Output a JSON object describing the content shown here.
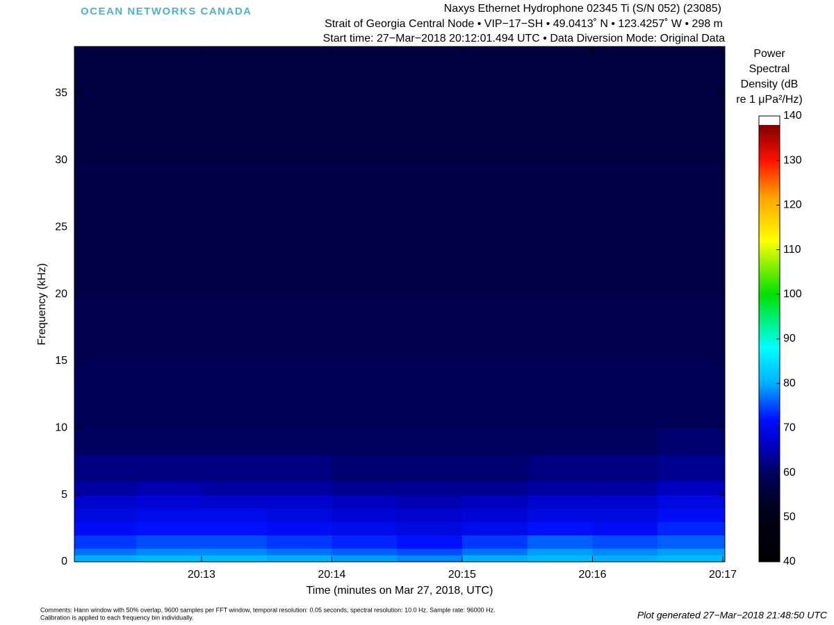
{
  "chart_data": {
    "type": "heatmap",
    "logo": "OCEAN NETWORKS CANADA",
    "title_lines": [
      "Naxys Ethernet Hydrophone 02345 Ti (S/N 052) (23085)",
      "Strait of Georgia Central Node  •  VIP−17−SH  •  49.0413˚ N  •  123.4257˚ W  •  298 m",
      "Start time: 27−Mar−2018 20:12:01.494 UTC  •  Data Diversion Mode: Original Data"
    ],
    "x_label": "Time (minutes on Mar 27, 2018, UTC)",
    "y_label": "Frequency (kHz)",
    "colorbar_title": [
      "Power",
      "Spectral",
      "Density (dB",
      "re 1 μPa²/Hz)"
    ],
    "comments": [
      "Comments: Hann window with 50% overlap, 9600 samples per FFT window, temporal resolution: 0.05 seconds, spectral resolution: 10.0 Hz. Sample rate: 96000 Hz.",
      "Calibration is applied to each frequency bin individually."
    ],
    "generated": "Plot generated 27−Mar−2018 21:48:50 UTC",
    "xlim": [
      12.025,
      17.016
    ],
    "xticks": [
      {
        "value": 13,
        "label": "20:13"
      },
      {
        "value": 14,
        "label": "20:14"
      },
      {
        "value": 15,
        "label": "20:15"
      },
      {
        "value": 16,
        "label": "20:16"
      },
      {
        "value": 17,
        "label": "20:17"
      }
    ],
    "ylim": [
      0,
      38.5
    ],
    "yticks": [
      0,
      5,
      10,
      15,
      20,
      25,
      30,
      35
    ],
    "x_edges": [
      12.025,
      12.5,
      13,
      13.5,
      14,
      14.5,
      15,
      15.5,
      16,
      16.5,
      17.016
    ],
    "y_edges": [
      0,
      0.5,
      1,
      2,
      3,
      4,
      5,
      6,
      8,
      10,
      15,
      20,
      25,
      30,
      38.5
    ],
    "z": [
      [
        80,
        81,
        81,
        80,
        79,
        78,
        80,
        81,
        80,
        81
      ],
      [
        77,
        78,
        78,
        77,
        76,
        75,
        77,
        79,
        78,
        79
      ],
      [
        74,
        75,
        75,
        74,
        73,
        72,
        74,
        76,
        75,
        76
      ],
      [
        71,
        72,
        72,
        71,
        70,
        69,
        70,
        72,
        71,
        73
      ],
      [
        69,
        70,
        70,
        69,
        68,
        67,
        68,
        69,
        69,
        71
      ],
      [
        67,
        68,
        67,
        67,
        66,
        65,
        66,
        67,
        67,
        69
      ],
      [
        64,
        65,
        64,
        64,
        63,
        63,
        63,
        64,
        64,
        66
      ],
      [
        62,
        62,
        62,
        62,
        61,
        61,
        61,
        62,
        62,
        63
      ],
      [
        60,
        60,
        60,
        60,
        60,
        60,
        60,
        60,
        60,
        61
      ],
      [
        59,
        59,
        59,
        59,
        59,
        59,
        59,
        59,
        59,
        59
      ],
      [
        58,
        58,
        58,
        58,
        58,
        58,
        58,
        58,
        58,
        58
      ],
      [
        57,
        57,
        57,
        57,
        57,
        57,
        57,
        57,
        57,
        57
      ],
      [
        57,
        57,
        57,
        57,
        57,
        57,
        57,
        57,
        57,
        57
      ],
      [
        56,
        56,
        56,
        56,
        56,
        56,
        56,
        56,
        56,
        56
      ]
    ],
    "clim": [
      40,
      140
    ],
    "cticks": [
      40,
      50,
      60,
      70,
      80,
      90,
      100,
      110,
      120,
      130,
      140
    ],
    "colorscale": [
      [
        40,
        "#000000"
      ],
      [
        52,
        "#00001c"
      ],
      [
        60,
        "#000060"
      ],
      [
        66,
        "#0000c0"
      ],
      [
        72,
        "#0010ff"
      ],
      [
        80,
        "#00b0ff"
      ],
      [
        88,
        "#00ffff"
      ],
      [
        100,
        "#00e000"
      ],
      [
        112,
        "#ffff00"
      ],
      [
        122,
        "#ffa000"
      ],
      [
        130,
        "#ff1000"
      ],
      [
        138,
        "#800000"
      ],
      [
        138.01,
        "#ffffff"
      ],
      [
        140,
        "#ffffff"
      ]
    ]
  }
}
